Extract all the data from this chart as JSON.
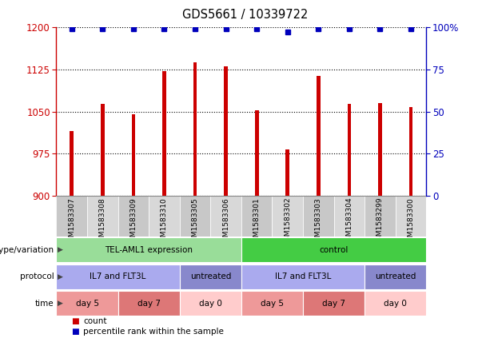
{
  "title": "GDS5661 / 10339722",
  "samples": [
    "GSM1583307",
    "GSM1583308",
    "GSM1583309",
    "GSM1583310",
    "GSM1583305",
    "GSM1583306",
    "GSM1583301",
    "GSM1583302",
    "GSM1583303",
    "GSM1583304",
    "GSM1583299",
    "GSM1583300"
  ],
  "bar_values": [
    1015,
    1063,
    1045,
    1122,
    1138,
    1130,
    1052,
    983,
    1113,
    1063,
    1065,
    1058
  ],
  "percentile_values": [
    99,
    99,
    99,
    99,
    99,
    99,
    99,
    97,
    99,
    99,
    99,
    99
  ],
  "ylim_left": [
    900,
    1200
  ],
  "ylim_right": [
    0,
    100
  ],
  "yticks_left": [
    900,
    975,
    1050,
    1125,
    1200
  ],
  "yticks_right": [
    0,
    25,
    50,
    75,
    100
  ],
  "bar_color": "#CC0000",
  "dot_color": "#0000BB",
  "background_color": "#FFFFFF",
  "sample_band_color": "#C8C8C8",
  "sample_band_color2": "#D8D8D8",
  "annotation_rows": [
    {
      "label": "genotype/variation",
      "segments": [
        {
          "text": "TEL-AML1 expression",
          "span": 6,
          "color": "#99DD99"
        },
        {
          "text": "control",
          "span": 6,
          "color": "#44CC44"
        }
      ]
    },
    {
      "label": "protocol",
      "segments": [
        {
          "text": "IL7 and FLT3L",
          "span": 4,
          "color": "#AAAAEE"
        },
        {
          "text": "untreated",
          "span": 2,
          "color": "#8888CC"
        },
        {
          "text": "IL7 and FLT3L",
          "span": 4,
          "color": "#AAAAEE"
        },
        {
          "text": "untreated",
          "span": 2,
          "color": "#8888CC"
        }
      ]
    },
    {
      "label": "time",
      "segments": [
        {
          "text": "day 5",
          "span": 2,
          "color": "#EE9999"
        },
        {
          "text": "day 7",
          "span": 2,
          "color": "#DD7777"
        },
        {
          "text": "day 0",
          "span": 2,
          "color": "#FFCCCC"
        },
        {
          "text": "day 5",
          "span": 2,
          "color": "#EE9999"
        },
        {
          "text": "day 7",
          "span": 2,
          "color": "#DD7777"
        },
        {
          "text": "day 0",
          "span": 2,
          "color": "#FFCCCC"
        }
      ]
    }
  ],
  "legend": [
    {
      "label": "count",
      "color": "#CC0000"
    },
    {
      "label": "percentile rank within the sample",
      "color": "#0000BB"
    }
  ]
}
